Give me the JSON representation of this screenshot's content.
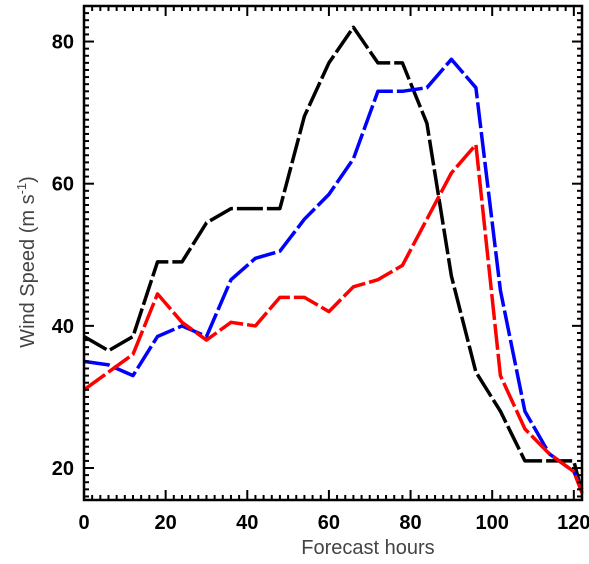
{
  "chart_data": {
    "type": "line",
    "title": "",
    "xlabel": "Forecast hours",
    "ylabel": "Wind Speed (m s",
    "ylabel_superscript": "-1",
    "ylabel_close": ")",
    "xlim": [
      0,
      122
    ],
    "ylim": [
      15.5,
      85
    ],
    "x_ticks": [
      0,
      20,
      40,
      60,
      80,
      100,
      120
    ],
    "x_tick_labels": [
      "0",
      "20",
      "40",
      "60",
      "80",
      "100",
      "120"
    ],
    "y_ticks": [
      20,
      40,
      60,
      80
    ],
    "y_tick_labels": [
      "20",
      "40",
      "60",
      "80"
    ],
    "grid": false,
    "line_style": "dashed",
    "series": [
      {
        "color": "#000000",
        "x": [
          0,
          6,
          12,
          18,
          24,
          30,
          36,
          42,
          48,
          54,
          60,
          66,
          72,
          78,
          84,
          90,
          96,
          102,
          108,
          114,
          120,
          122
        ],
        "y": [
          38.5,
          36.5,
          38.5,
          49,
          49,
          54.5,
          56.5,
          56.5,
          56.5,
          69.5,
          77,
          82,
          77,
          77,
          68.5,
          47,
          33.5,
          28,
          21,
          21,
          21,
          16.5
        ]
      },
      {
        "color": "#0000ff",
        "x": [
          0,
          6,
          12,
          18,
          24,
          30,
          36,
          42,
          48,
          54,
          60,
          66,
          72,
          78,
          84,
          90,
          96,
          102,
          108,
          114,
          120,
          122
        ],
        "y": [
          35,
          34.5,
          33,
          38.5,
          40,
          38.5,
          46.5,
          49.5,
          50.5,
          55,
          58.5,
          63.5,
          73,
          73,
          73.5,
          77.5,
          73.5,
          45,
          28,
          22,
          19.5,
          17
        ]
      },
      {
        "color": "#ff0000",
        "x": [
          0,
          6,
          12,
          18,
          24,
          30,
          36,
          42,
          48,
          54,
          60,
          66,
          72,
          78,
          84,
          90,
          96,
          102,
          108,
          114,
          120,
          122
        ],
        "y": [
          31,
          33.5,
          36,
          44.5,
          40.5,
          38,
          40.5,
          40,
          44,
          44,
          42,
          45.5,
          46.5,
          48.5,
          55,
          61.5,
          65.5,
          33,
          25.5,
          22,
          19.5,
          16.5
        ]
      }
    ]
  }
}
